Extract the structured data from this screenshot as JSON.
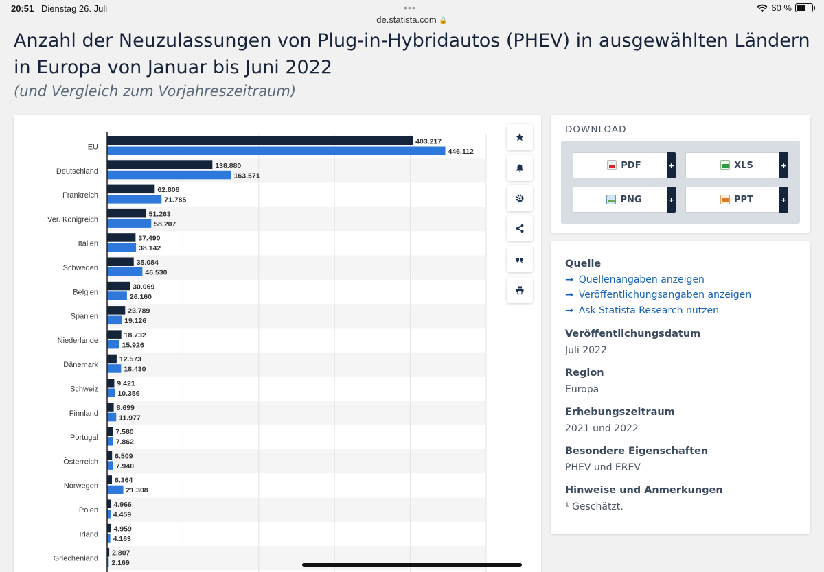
{
  "status_bar": {
    "time": "20:51",
    "date": "Dienstag 26. Juli",
    "url": "de.statista.com",
    "battery": "60 %",
    "battery_level": 0.6
  },
  "page": {
    "title": "Anzahl der Neuzulassungen von Plug-in-Hybridautos (PHEV) in ausgewählten Ländern in Europa von Januar bis Juni 2022",
    "subtitle": "(und Vergleich zum Vorjahreszeitraum)"
  },
  "toolbar": {
    "icons": [
      "star-icon",
      "bell-icon",
      "gear-icon",
      "share-icon",
      "quote-icon",
      "print-icon"
    ]
  },
  "download": {
    "title": "DOWNLOAD",
    "buttons": [
      {
        "label": "PDF",
        "icon": "pdf-file-icon"
      },
      {
        "label": "XLS",
        "icon": "xls-file-icon"
      },
      {
        "label": "PNG",
        "icon": "png-file-icon"
      },
      {
        "label": "PPT",
        "icon": "ppt-file-icon"
      }
    ],
    "plus": "+"
  },
  "info": {
    "source_heading": "Quelle",
    "links": [
      "Quellenangaben anzeigen",
      "Veröffentlichungsangaben anzeigen",
      "Ask Statista Research nutzen"
    ],
    "pub_date_heading": "Veröffentlichungsdatum",
    "pub_date": "Juli 2022",
    "region_heading": "Region",
    "region": "Europa",
    "period_heading": "Erhebungszeitraum",
    "period": "2021 und 2022",
    "special_heading": "Besondere Eigenschaften",
    "special": "PHEV und EREV",
    "notes_heading": "Hinweise und Anmerkungen",
    "notes": "¹ Geschätzt."
  },
  "chart_data": {
    "type": "bar",
    "orientation": "horizontal",
    "categories": [
      "EU",
      "Deutschland",
      "Frankreich",
      "Ver. Königreich",
      "Italien",
      "Schweden",
      "Belgien",
      "Spanien",
      "Niederlande",
      "Dänemark",
      "Schweiz",
      "Finnland",
      "Portugal",
      "Österreich",
      "Norwegen",
      "Polen",
      "Irland",
      "Griechenland"
    ],
    "series": [
      {
        "color": "#14243a",
        "values": [
          403217,
          138880,
          62808,
          51263,
          37490,
          35084,
          30069,
          23789,
          18732,
          12573,
          9421,
          8699,
          7580,
          6509,
          6364,
          4966,
          4959,
          2807
        ],
        "labels": [
          "403.217",
          "138.880",
          "62.808",
          "51.263",
          "37.490",
          "35.084",
          "30.069",
          "23.789",
          "18.732",
          "12.573",
          "9.421",
          "8.699",
          "7.580",
          "6.509",
          "6.364",
          "4.966",
          "4.959",
          "2.807"
        ]
      },
      {
        "color": "#2e78dc",
        "values": [
          446112,
          163571,
          71785,
          58207,
          38142,
          46530,
          26160,
          19126,
          15926,
          18430,
          10356,
          11977,
          7862,
          7940,
          21308,
          4459,
          4163,
          2169
        ],
        "labels": [
          "446.112",
          "163.571",
          "71.785",
          "58.207",
          "38.142",
          "46.530",
          "26.160",
          "19.126",
          "15.926",
          "18.430",
          "10.356",
          "11.977",
          "7.862",
          "7.940",
          "21.308",
          "4.459",
          "4.163",
          "2.169"
        ]
      }
    ],
    "xlim": [
      0,
      500000
    ],
    "grid": true,
    "colors": {
      "series1": "#14243a",
      "series2": "#2e78dc",
      "gridline": "#e1e3e6",
      "stripe": "#f5f5f5"
    }
  }
}
